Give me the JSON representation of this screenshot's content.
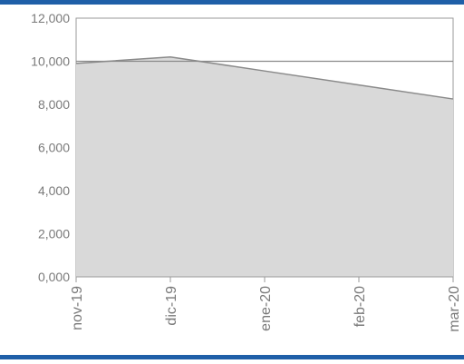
{
  "colors": {
    "frame_bar": "#1f5fa8",
    "area_fill": "#d9d9d9",
    "line": "#8a8a8a",
    "reference_line": "#8a8a8a",
    "axis_text": "#7a7a7a"
  },
  "chart_data": {
    "type": "area",
    "title": "",
    "xlabel": "",
    "ylabel": "",
    "categories": [
      "nov-19",
      "dic-19",
      "ene-20",
      "feb-20",
      "mar-20"
    ],
    "series": [
      {
        "values": [
          9900,
          10200,
          9550,
          8900,
          8250
        ]
      }
    ],
    "reference_line": {
      "value": 10000
    },
    "ylim": [
      0,
      12000
    ],
    "yticks": [
      0,
      2000,
      4000,
      6000,
      8000,
      10000,
      12000
    ],
    "ytick_labels": [
      "0,000",
      "2,000",
      "4,000",
      "6,000",
      "8,000",
      "10,000",
      "12,000"
    ],
    "grid": false,
    "legend": "none"
  }
}
